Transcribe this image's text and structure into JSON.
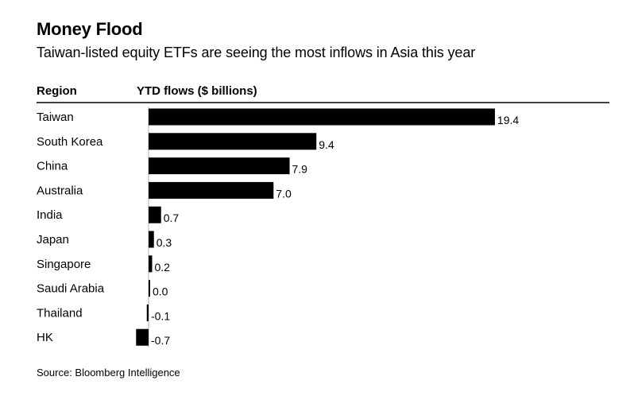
{
  "header": {
    "title": "Money Flood",
    "subtitle": "Taiwan-listed equity ETFs are seeing the most inflows in Asia this year",
    "col_region": "Region",
    "col_flows": "YTD flows ($ billions)"
  },
  "footer": {
    "source": "Source: Bloomberg Intelligence"
  },
  "colors": {
    "bar": "#000000",
    "rule": "#000000",
    "zero_line": "#b3b3b3"
  },
  "chart_data": {
    "type": "bar",
    "orientation": "horizontal",
    "title": "Money Flood",
    "subtitle": "Taiwan-listed equity ETFs are seeing the most inflows in Asia this year",
    "xlabel": "YTD flows ($ billions)",
    "ylabel": "Region",
    "categories": [
      "Taiwan",
      "South Korea",
      "China",
      "Australia",
      "India",
      "Japan",
      "Singapore",
      "Saudi Arabia",
      "Thailand",
      "HK"
    ],
    "values": [
      19.4,
      9.4,
      7.9,
      7.0,
      0.7,
      0.3,
      0.2,
      0.0,
      -0.1,
      -0.7
    ],
    "value_labels": [
      "19.4",
      "9.4",
      "7.9",
      "7.0",
      "0.7",
      "0.3",
      "0.2",
      "0.0",
      "-0.1",
      "-0.7"
    ],
    "grid": false,
    "legend": "none"
  }
}
